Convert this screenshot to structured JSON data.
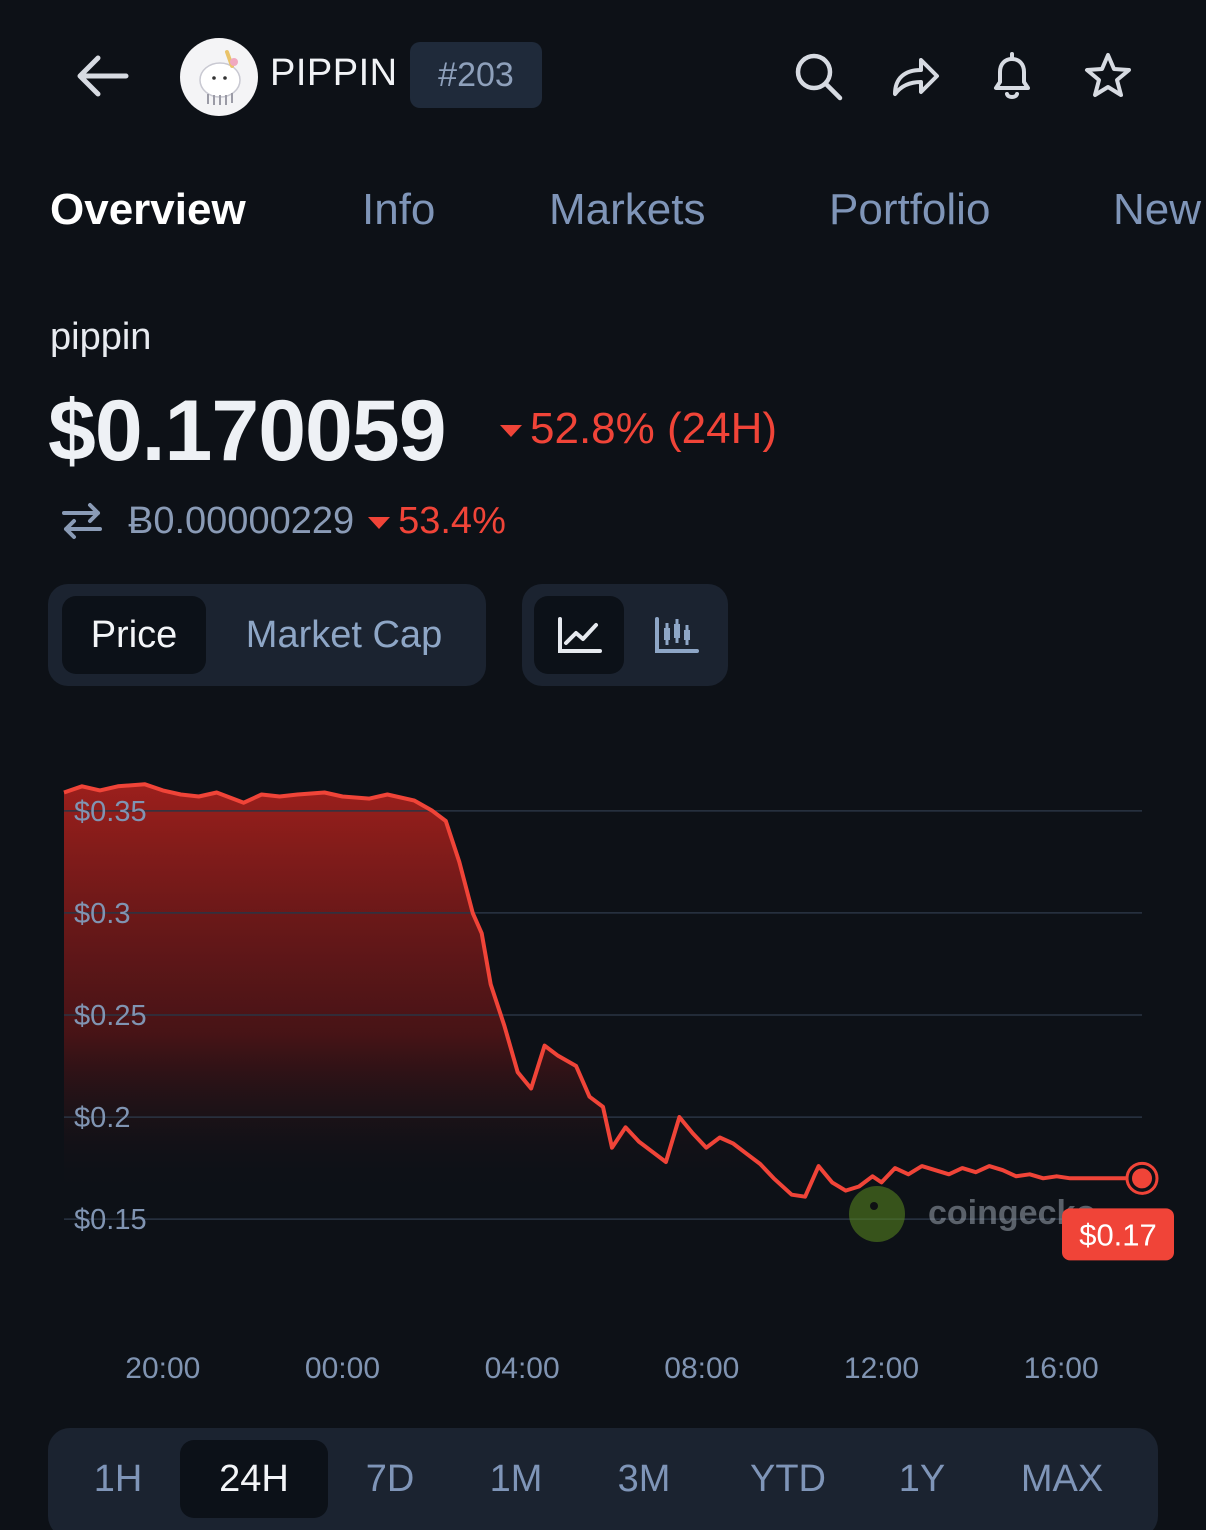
{
  "header": {
    "symbol": "PIPPIN",
    "rank": "#203"
  },
  "tabs": [
    "Overview",
    "Info",
    "Markets",
    "Portfolio",
    "New"
  ],
  "coin": {
    "name": "pippin",
    "price": "$0.170059",
    "change_24h": "52.8% (24H)",
    "btc_price": "Ƀ0.00000229",
    "btc_change": "53.4%"
  },
  "chart_toggle": {
    "price_label": "Price",
    "market_cap_label": "Market Cap"
  },
  "colors": {
    "accent_red": "#f04438",
    "background": "#0d1117",
    "panel": "#1b2330"
  },
  "icons": [
    "back-arrow-icon",
    "search-icon",
    "share-icon",
    "bell-icon",
    "star-icon",
    "line-chart-icon",
    "candlestick-icon",
    "swap-icon"
  ],
  "watermark": "coingecko",
  "chart_data": {
    "type": "area",
    "title": "",
    "xlabel": "",
    "ylabel": "",
    "y_ticks": [
      "$0.35",
      "$0.3",
      "$0.25",
      "$0.2",
      "$0.15"
    ],
    "y_tick_values": [
      0.35,
      0.3,
      0.25,
      0.2,
      0.15
    ],
    "x_ticks": [
      "20:00",
      "00:00",
      "04:00",
      "08:00",
      "12:00",
      "16:00"
    ],
    "x_tick_hours": [
      20,
      24,
      28,
      32,
      36,
      40
    ],
    "ylim": [
      0.13,
      0.37
    ],
    "xlim": [
      17.8,
      41.8
    ],
    "current_label": "$0.17",
    "grid": true,
    "series": [
      {
        "x": [
          17.8,
          18.2,
          18.6,
          19.0,
          19.6,
          20.0,
          20.4,
          20.8,
          21.2,
          21.8,
          22.2,
          22.6,
          23.0,
          23.6,
          24.0,
          24.6,
          25.0,
          25.6,
          26.0,
          26.3,
          26.6,
          26.9,
          27.1,
          27.3,
          27.6,
          27.9,
          28.2,
          28.5,
          28.8,
          29.2,
          29.5,
          29.8,
          30.0,
          30.3,
          30.6,
          30.9,
          31.2,
          31.5,
          31.8,
          32.1,
          32.4,
          32.7,
          33.0,
          33.3,
          33.6,
          34.0,
          34.3,
          34.6,
          34.9,
          35.2,
          35.5,
          35.8,
          36.0,
          36.3,
          36.6,
          36.9,
          37.2,
          37.5,
          37.8,
          38.1,
          38.4,
          38.7,
          39.0,
          39.3,
          39.6,
          39.9,
          40.2,
          40.5,
          40.8,
          41.2,
          41.8
        ],
        "y": [
          0.359,
          0.362,
          0.36,
          0.362,
          0.363,
          0.36,
          0.358,
          0.357,
          0.359,
          0.354,
          0.358,
          0.357,
          0.358,
          0.359,
          0.357,
          0.356,
          0.358,
          0.355,
          0.35,
          0.345,
          0.325,
          0.3,
          0.29,
          0.265,
          0.245,
          0.222,
          0.214,
          0.235,
          0.23,
          0.225,
          0.21,
          0.205,
          0.185,
          0.195,
          0.188,
          0.183,
          0.178,
          0.2,
          0.192,
          0.185,
          0.19,
          0.187,
          0.182,
          0.177,
          0.17,
          0.162,
          0.161,
          0.176,
          0.168,
          0.164,
          0.166,
          0.171,
          0.168,
          0.175,
          0.172,
          0.176,
          0.174,
          0.172,
          0.175,
          0.173,
          0.176,
          0.174,
          0.171,
          0.172,
          0.17,
          0.171,
          0.17,
          0.17,
          0.17,
          0.17,
          0.17
        ]
      }
    ]
  },
  "ranges": [
    "1H",
    "24H",
    "7D",
    "1M",
    "3M",
    "YTD",
    "1Y",
    "MAX"
  ],
  "active_range": "24H"
}
